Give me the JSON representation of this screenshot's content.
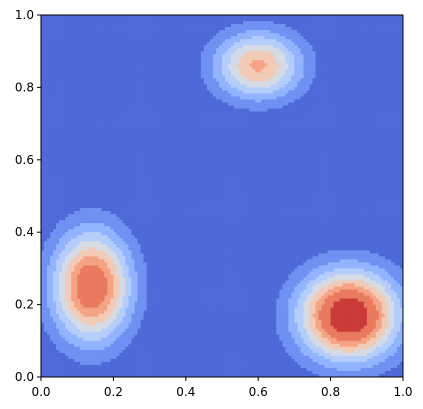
{
  "chart_data": {
    "type": "contour",
    "title": "",
    "xlabel": "",
    "ylabel": "",
    "xlim": [
      0.0,
      1.0
    ],
    "ylim": [
      0.0,
      1.0
    ],
    "grid": false,
    "legend": false,
    "x_ticks": [
      "0.0",
      "0.2",
      "0.4",
      "0.6",
      "0.8",
      "1.0"
    ],
    "y_ticks": [
      "0.0",
      "0.2",
      "0.4",
      "0.6",
      "0.8",
      "1.0"
    ],
    "colormap": "coolwarm",
    "levels": [
      {
        "level": 0,
        "color": "#4f69d9"
      },
      {
        "level": 1,
        "color": "#6f91f2"
      },
      {
        "level": 2,
        "color": "#92b4fe"
      },
      {
        "level": 3,
        "color": "#b5cdfa"
      },
      {
        "level": 4,
        "color": "#d5dbe5"
      },
      {
        "level": 5,
        "color": "#f2cbb7"
      },
      {
        "level": 6,
        "color": "#f6a385"
      },
      {
        "level": 7,
        "color": "#e97a5f"
      },
      {
        "level": 8,
        "color": "#c93b38"
      }
    ],
    "peaks": [
      {
        "name": "top-center",
        "x": 0.6,
        "y": 0.86,
        "sx": 0.085,
        "sy": 0.065,
        "amp": 0.62
      },
      {
        "name": "left",
        "x": 0.14,
        "y": 0.25,
        "sx": 0.075,
        "sy": 0.105,
        "amp": 0.83
      },
      {
        "name": "bottom-right",
        "x": 0.85,
        "y": 0.17,
        "sx": 0.095,
        "sy": 0.085,
        "amp": 1.0
      }
    ],
    "threshold_steps": [
      0.1,
      0.2,
      0.3,
      0.4,
      0.5,
      0.6,
      0.7,
      0.85
    ]
  }
}
